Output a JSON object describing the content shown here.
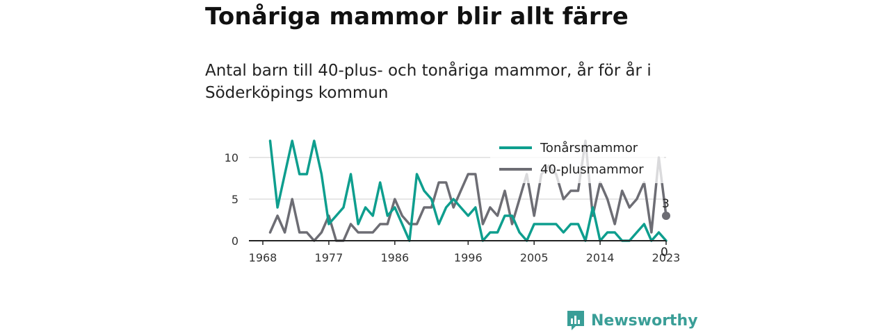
{
  "title": "Tonåriga mammor blir allt färre",
  "subtitle": "Antal barn till 40-plus- och tonåriga mammor, år för år i Söderköpings kommun",
  "brand": {
    "name": "Newsworthy",
    "color": "#3a9e97",
    "icon": "newsworthy-logo-icon"
  },
  "chart_data": {
    "type": "line",
    "x": [
      1969,
      1970,
      1971,
      1972,
      1973,
      1974,
      1975,
      1976,
      1977,
      1978,
      1979,
      1980,
      1981,
      1982,
      1983,
      1984,
      1985,
      1986,
      1987,
      1988,
      1989,
      1990,
      1991,
      1992,
      1993,
      1994,
      1995,
      1996,
      1997,
      1998,
      1999,
      2000,
      2001,
      2002,
      2003,
      2004,
      2005,
      2006,
      2007,
      2008,
      2009,
      2010,
      2011,
      2012,
      2013,
      2014,
      2015,
      2016,
      2017,
      2018,
      2019,
      2020,
      2021,
      2022,
      2023
    ],
    "x_ticks": [
      "1968",
      "1977",
      "1986",
      "1996",
      "2005",
      "2014",
      "2023"
    ],
    "y_ticks": [
      "0",
      "5",
      "10"
    ],
    "ylim": [
      0,
      12
    ],
    "grid": true,
    "legend_position": "top-right",
    "series": [
      {
        "name": "Tonårsmammor",
        "color": "#0e9e8e",
        "values": [
          12,
          4,
          8,
          12,
          8,
          8,
          12,
          8,
          2,
          3,
          4,
          8,
          2,
          4,
          3,
          7,
          3,
          4,
          2,
          0,
          8,
          6,
          5,
          2,
          4,
          5,
          4,
          3,
          4,
          0,
          1,
          1,
          3,
          3,
          1,
          0,
          2,
          2,
          2,
          2,
          1,
          2,
          2,
          0,
          4,
          0,
          1,
          1,
          0,
          0,
          1,
          2,
          0,
          1,
          0
        ],
        "end_label": "0"
      },
      {
        "name": "40-plusmammor",
        "color": "#6d6d74",
        "values": [
          1,
          3,
          1,
          5,
          1,
          1,
          0,
          1,
          3,
          0,
          0,
          2,
          1,
          1,
          1,
          2,
          2,
          5,
          3,
          2,
          2,
          4,
          4,
          7,
          7,
          4,
          6,
          8,
          8,
          2,
          4,
          3,
          6,
          2,
          5,
          8,
          3,
          8,
          9,
          8,
          5,
          6,
          6,
          12,
          3,
          7,
          5,
          2,
          6,
          4,
          5,
          7,
          1,
          10,
          3
        ],
        "end_label": "3"
      }
    ]
  }
}
